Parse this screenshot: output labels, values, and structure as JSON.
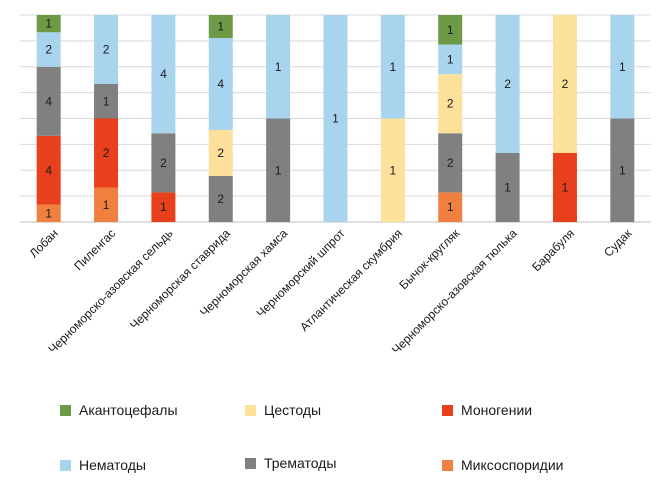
{
  "chart_data": {
    "type": "bar",
    "stacked": true,
    "normalized": true,
    "title": "",
    "xlabel": "",
    "ylabel": "",
    "ylim": [
      0,
      1
    ],
    "grid": true,
    "legend_position": "bottom",
    "categories": [
      "Лобан",
      "Пиленгас",
      "Черноморско-азовская сельдь",
      "Черноморская ставрида",
      "Черноморская хамса",
      "Черноморский шпрот",
      "Атлантическая скумбрия",
      "Бычок-кругляк",
      "Черноморско-азовская тюлька",
      "Барабуля",
      "Судак"
    ],
    "series": [
      {
        "name": "Миксоспоридии",
        "color": "#f08040",
        "values": [
          1,
          1,
          0,
          0,
          0,
          0,
          0,
          1,
          0,
          0,
          0
        ]
      },
      {
        "name": "Моногении",
        "color": "#e8401c",
        "values": [
          4,
          2,
          1,
          0,
          0,
          0,
          0,
          0,
          0,
          1,
          0
        ]
      },
      {
        "name": "Трематоды",
        "color": "#808080",
        "values": [
          4,
          1,
          2,
          2,
          1,
          0,
          0,
          2,
          1,
          0,
          1
        ]
      },
      {
        "name": "Цестоды",
        "color": "#fde09a",
        "values": [
          0,
          0,
          0,
          2,
          0,
          0,
          1,
          2,
          0,
          2,
          0
        ]
      },
      {
        "name": "Нематоды",
        "color": "#a8d4ee",
        "values": [
          2,
          2,
          4,
          4,
          1,
          1,
          1,
          1,
          2,
          0,
          1
        ]
      },
      {
        "name": "Акантоцефалы",
        "color": "#6e9a48",
        "values": [
          1,
          0,
          0,
          1,
          0,
          0,
          0,
          1,
          0,
          0,
          0
        ]
      }
    ]
  }
}
